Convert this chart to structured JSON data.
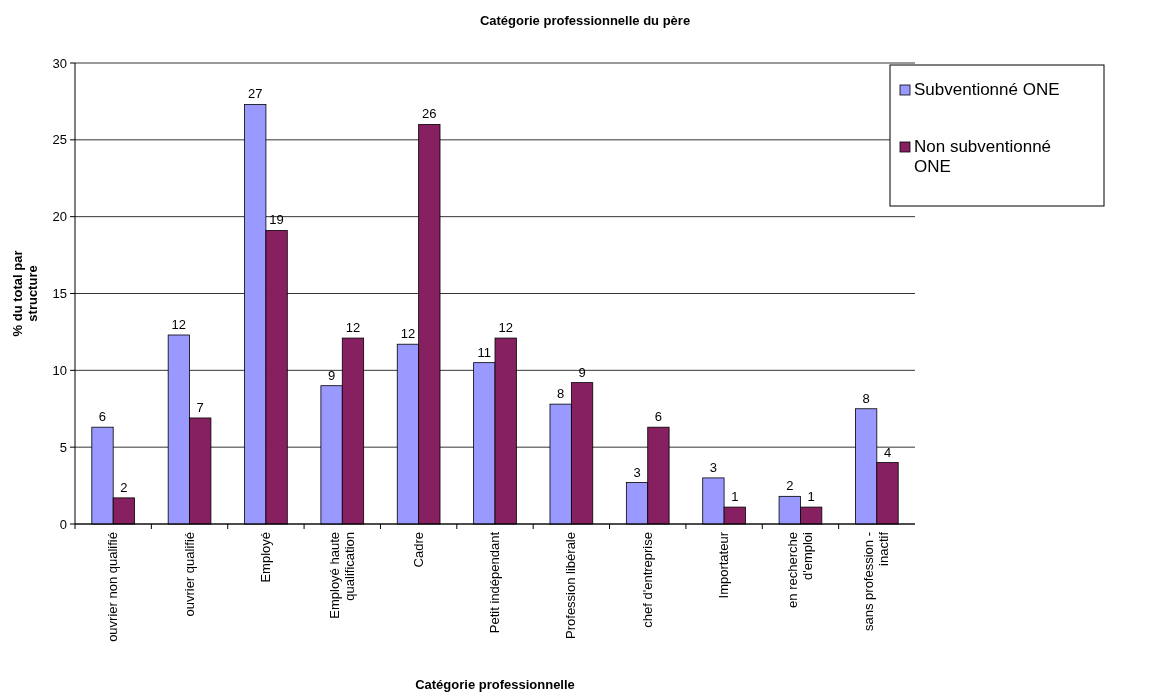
{
  "chart_data": {
    "type": "bar",
    "title": "Catégorie professionnelle du père",
    "xlabel": "Catégorie professionnelle",
    "ylabel": "% du total par structure",
    "categories": [
      "ouvrier non qualifié",
      "ouvrier qualifié",
      "Employé",
      "Employé haute qualification",
      "Cadre",
      "Petit indépendant",
      "Profession libérale",
      "chef d'entreprise",
      "Importateur",
      "en recherche d'emploi",
      "sans profession - inactif"
    ],
    "series": [
      {
        "name": "Subventionné ONE",
        "color": "#9999ff",
        "values": [
          6.3,
          12.3,
          27.3,
          9.0,
          11.7,
          10.5,
          7.8,
          2.7,
          3.0,
          1.8,
          7.5
        ],
        "value_labels": [
          "6",
          "12",
          "27",
          "9",
          "12",
          "11",
          "8",
          "3",
          "3",
          "2",
          "8"
        ]
      },
      {
        "name": "Non subventionné ONE",
        "color": "#862060",
        "values": [
          1.7,
          6.9,
          19.1,
          12.1,
          26.0,
          12.1,
          9.2,
          6.3,
          1.1,
          1.1,
          4.0
        ],
        "value_labels": [
          "2",
          "7",
          "19",
          "12",
          "26",
          "12",
          "9",
          "6",
          "1",
          "1",
          "4"
        ]
      }
    ],
    "ylim": [
      0,
      30
    ],
    "yticks": [
      0,
      5,
      10,
      15,
      20,
      25,
      30
    ],
    "grid": "y",
    "legend": "top right"
  }
}
